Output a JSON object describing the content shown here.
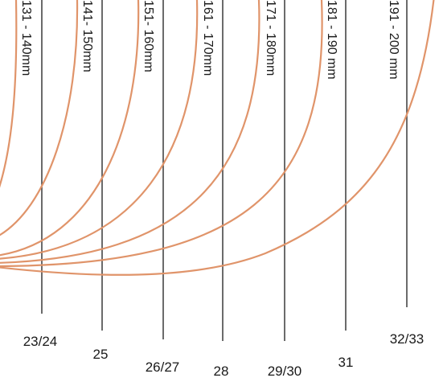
{
  "diagram": {
    "curve_color": "#e0946a",
    "line_color": "#3a3a3a",
    "columns": [
      {
        "range_label": "131 - 140mm",
        "size_label": "23/24"
      },
      {
        "range_label": "141- 150mm",
        "size_label": "25"
      },
      {
        "range_label": "151- 160mm",
        "size_label": "26/27"
      },
      {
        "range_label": "161 - 170mm",
        "size_label": "28"
      },
      {
        "range_label": "171 - 180mm",
        "size_label": "29/30"
      },
      {
        "range_label": "181 - 190 mm",
        "size_label": "31"
      },
      {
        "range_label": "191 - 200 mm",
        "size_label": "32/33"
      }
    ]
  }
}
